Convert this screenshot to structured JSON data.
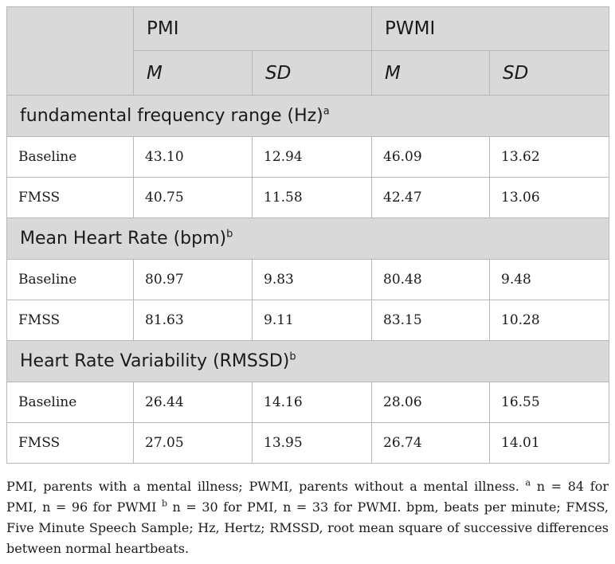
{
  "header": {
    "group1": "PMI",
    "group2": "PWMI",
    "mean_label": "M",
    "sd_label": "SD"
  },
  "sections": [
    {
      "title": "fundamental frequency range (Hz)",
      "note": "a",
      "rows": [
        {
          "label": "Baseline",
          "pmi_m": "43.10",
          "pmi_sd": "12.94",
          "pwmi_m": "46.09",
          "pwmi_sd": "13.62"
        },
        {
          "label": "FMSS",
          "pmi_m": "40.75",
          "pmi_sd": "11.58",
          "pwmi_m": "42.47",
          "pwmi_sd": "13.06"
        }
      ]
    },
    {
      "title": "Mean Heart Rate (bpm)",
      "note": "b",
      "rows": [
        {
          "label": "Baseline",
          "pmi_m": "80.97",
          "pmi_sd": "9.83",
          "pwmi_m": "80.48",
          "pwmi_sd": "9.48"
        },
        {
          "label": "FMSS",
          "pmi_m": "81.63",
          "pmi_sd": "9.11",
          "pwmi_m": "83.15",
          "pwmi_sd": "10.28"
        }
      ]
    },
    {
      "title": "Heart Rate Variability (RMSSD)",
      "note": "b",
      "rows": [
        {
          "label": "Baseline",
          "pmi_m": "26.44",
          "pmi_sd": "14.16",
          "pwmi_m": "28.06",
          "pwmi_sd": "16.55"
        },
        {
          "label": "FMSS",
          "pmi_m": "27.05",
          "pmi_sd": "13.95",
          "pwmi_m": "26.74",
          "pwmi_sd": "14.01"
        }
      ]
    }
  ],
  "footnote": {
    "part1": "PMI, parents with a mental illness; PWMI, parents without a mental illness. ",
    "note_a": "a",
    "part2": " n = 84 for PMI, n = 96 for PWMI ",
    "note_b": "b",
    "part3": " n = 30 for PMI, n = 33 for PWMI. bpm, beats per minute; FMSS, Five Minute Speech Sample; Hz, Hertz; RMSSD, root mean square of successive differences between normal heartbeats."
  }
}
